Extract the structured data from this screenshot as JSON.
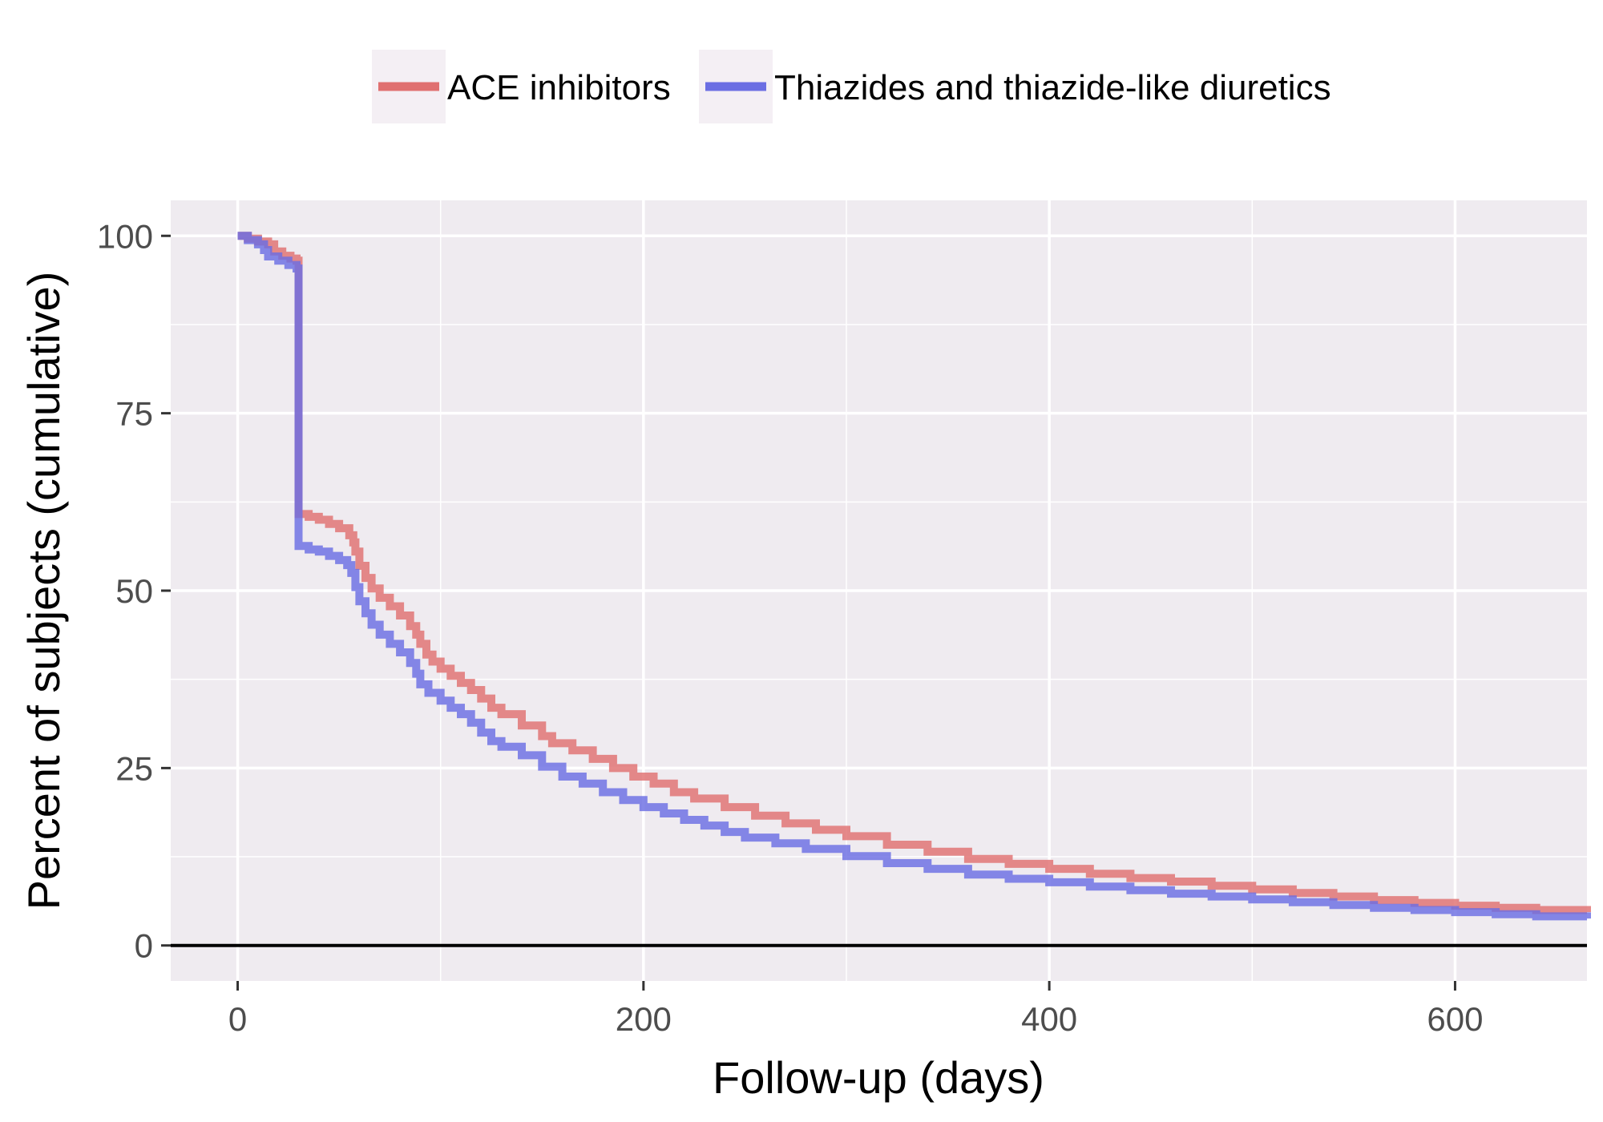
{
  "chart_data": {
    "type": "line",
    "title": "",
    "xlabel": "Follow-up (days)",
    "ylabel": "Percent of subjects (cumulative)",
    "xlim": [
      -33,
      665
    ],
    "ylim": [
      -5,
      105
    ],
    "x_ticks": [
      0,
      200,
      400,
      600
    ],
    "x_tick_labels": [
      "0",
      "200",
      "400",
      "600"
    ],
    "y_ticks": [
      0,
      25,
      50,
      75,
      100
    ],
    "y_tick_labels": [
      "0",
      "25",
      "50",
      "75",
      "100"
    ],
    "x_minor_ticks": [
      100,
      300,
      500
    ],
    "y_minor_ticks": [
      12.5,
      37.5,
      62.5,
      87.5
    ],
    "grid": true,
    "reference_line_y": 0,
    "legend_position": "top",
    "series": [
      {
        "name": "ACE inhibitors",
        "color": "#e07070",
        "step": true,
        "points": [
          [
            0,
            100
          ],
          [
            5,
            99.6
          ],
          [
            10,
            99.2
          ],
          [
            15,
            98.8
          ],
          [
            18,
            97.8
          ],
          [
            22,
            97.2
          ],
          [
            26,
            96.8
          ],
          [
            29,
            96.5
          ],
          [
            30,
            96.4
          ],
          [
            30,
            60.8
          ],
          [
            35,
            60.4
          ],
          [
            40,
            60.0
          ],
          [
            45,
            59.4
          ],
          [
            50,
            58.8
          ],
          [
            55,
            57.8
          ],
          [
            57,
            56.8
          ],
          [
            58,
            55.5
          ],
          [
            60,
            53.5
          ],
          [
            63,
            51.8
          ],
          [
            66,
            50.3
          ],
          [
            70,
            49.0
          ],
          [
            75,
            47.8
          ],
          [
            80,
            46.5
          ],
          [
            85,
            45.0
          ],
          [
            88,
            43.8
          ],
          [
            90,
            42.5
          ],
          [
            93,
            41.0
          ],
          [
            96,
            40.0
          ],
          [
            100,
            39.0
          ],
          [
            105,
            38.0
          ],
          [
            110,
            37.0
          ],
          [
            115,
            36.0
          ],
          [
            120,
            34.8
          ],
          [
            125,
            33.5
          ],
          [
            130,
            32.6
          ],
          [
            140,
            31.0
          ],
          [
            150,
            29.5
          ],
          [
            155,
            28.5
          ],
          [
            165,
            27.5
          ],
          [
            175,
            26.3
          ],
          [
            185,
            25.0
          ],
          [
            195,
            23.8
          ],
          [
            205,
            22.8
          ],
          [
            215,
            21.6
          ],
          [
            225,
            20.7
          ],
          [
            240,
            19.5
          ],
          [
            255,
            18.3
          ],
          [
            270,
            17.2
          ],
          [
            285,
            16.3
          ],
          [
            300,
            15.4
          ],
          [
            320,
            14.2
          ],
          [
            340,
            13.2
          ],
          [
            360,
            12.2
          ],
          [
            380,
            11.5
          ],
          [
            400,
            10.8
          ],
          [
            420,
            10.1
          ],
          [
            440,
            9.5
          ],
          [
            460,
            9.0
          ],
          [
            480,
            8.4
          ],
          [
            500,
            7.9
          ],
          [
            520,
            7.4
          ],
          [
            540,
            6.9
          ],
          [
            560,
            6.4
          ],
          [
            580,
            6.0
          ],
          [
            600,
            5.6
          ],
          [
            620,
            5.3
          ],
          [
            640,
            5.0
          ],
          [
            665,
            4.7
          ]
        ]
      },
      {
        "name": "Thiazides and thiazide-like diuretics",
        "color": "#6b6ee3",
        "step": true,
        "points": [
          [
            0,
            100
          ],
          [
            5,
            99.4
          ],
          [
            10,
            98.8
          ],
          [
            13,
            98.0
          ],
          [
            15,
            97.1
          ],
          [
            20,
            96.5
          ],
          [
            25,
            95.9
          ],
          [
            29,
            95.4
          ],
          [
            30,
            95.3
          ],
          [
            30,
            56.3
          ],
          [
            35,
            55.8
          ],
          [
            40,
            55.5
          ],
          [
            45,
            54.9
          ],
          [
            50,
            54.3
          ],
          [
            54,
            53.6
          ],
          [
            56,
            52.5
          ],
          [
            58,
            50.5
          ],
          [
            60,
            48.5
          ],
          [
            63,
            46.8
          ],
          [
            66,
            45.2
          ],
          [
            70,
            43.8
          ],
          [
            75,
            42.5
          ],
          [
            80,
            41.3
          ],
          [
            85,
            39.8
          ],
          [
            88,
            38.3
          ],
          [
            90,
            36.8
          ],
          [
            94,
            35.6
          ],
          [
            100,
            34.5
          ],
          [
            105,
            33.5
          ],
          [
            110,
            32.6
          ],
          [
            115,
            31.4
          ],
          [
            120,
            30.0
          ],
          [
            125,
            28.8
          ],
          [
            130,
            28.0
          ],
          [
            140,
            26.8
          ],
          [
            150,
            25.2
          ],
          [
            160,
            23.8
          ],
          [
            170,
            22.8
          ],
          [
            180,
            21.6
          ],
          [
            190,
            20.5
          ],
          [
            200,
            19.5
          ],
          [
            210,
            18.6
          ],
          [
            220,
            17.7
          ],
          [
            230,
            16.9
          ],
          [
            240,
            16.0
          ],
          [
            250,
            15.2
          ],
          [
            265,
            14.4
          ],
          [
            280,
            13.6
          ],
          [
            300,
            12.6
          ],
          [
            320,
            11.6
          ],
          [
            340,
            10.8
          ],
          [
            360,
            10.0
          ],
          [
            380,
            9.4
          ],
          [
            400,
            8.9
          ],
          [
            420,
            8.3
          ],
          [
            440,
            7.8
          ],
          [
            460,
            7.3
          ],
          [
            480,
            6.9
          ],
          [
            500,
            6.5
          ],
          [
            520,
            6.1
          ],
          [
            540,
            5.7
          ],
          [
            560,
            5.3
          ],
          [
            580,
            5.0
          ],
          [
            600,
            4.7
          ],
          [
            620,
            4.4
          ],
          [
            640,
            4.1
          ],
          [
            665,
            3.8
          ]
        ]
      }
    ]
  }
}
